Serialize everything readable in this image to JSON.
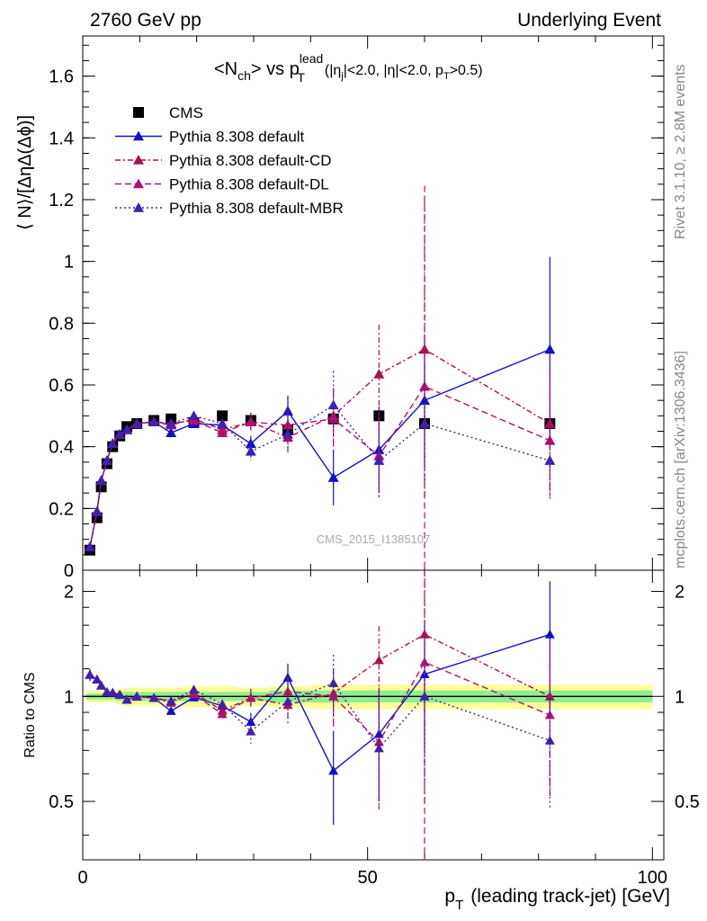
{
  "header": {
    "left": "2760 GeV pp",
    "right": "Underlying Event"
  },
  "side_notes": {
    "top": "Rivet 3.1.10, ≥ 2.8M events",
    "bottom": "mcplots.cern.ch [arXiv:1306.3436]"
  },
  "watermark": "CMS_2015_I1385107",
  "colors": {
    "cms": "#000000",
    "default": "#1010cc",
    "cd": "#aa1050",
    "dl": "#b0106e",
    "mbr": "#4020b0",
    "band_outer": "#ffff99",
    "band_inner": "#90ee90"
  },
  "chart_data": {
    "type": "scatter",
    "title": {
      "pre": "<N",
      "sub1": "ch",
      "mid": "> vs p",
      "sup2": "lead",
      "sub2": "T",
      "cuts": "(|η",
      "cuts_sub": "j",
      "cuts2": "|<2.0, |η|<2.0, p",
      "cuts_sub2": "T",
      "cuts3": ">0.5)"
    },
    "xlabel": "p",
    "xlabel_sub": "T",
    "xlabel_rest": "(leading track-jet) [GeV]",
    "ylabel": "⟨ N⟩/[ΔηΔ(Δϕ)]",
    "ratio_ylabel": "Ratio to CMS",
    "xlim": [
      0,
      102
    ],
    "ylim": [
      0,
      1.73
    ],
    "ratio_ylim": [
      0.34,
      2.3
    ],
    "ratio_log": true,
    "x_ticks": [
      "0",
      "50",
      "100"
    ],
    "y_ticks": [
      "0",
      "0.2",
      "0.4",
      "0.6",
      "0.8",
      "1",
      "1.2",
      "1.4",
      "1.6"
    ],
    "ratio_ticks": [
      "0.5",
      "1",
      "2"
    ],
    "x": [
      1.25,
      2.5,
      3.25,
      4.25,
      5.25,
      6.5,
      7.75,
      9.5,
      12.5,
      15.5,
      19.5,
      24.5,
      29.5,
      36,
      44,
      52,
      60,
      82
    ],
    "band_outer_pct": [
      4,
      4,
      4,
      4,
      4,
      5,
      6,
      6,
      6,
      6,
      7,
      7,
      6,
      7,
      8,
      8,
      8,
      8
    ],
    "band_inner_pct": [
      2,
      2,
      2,
      2,
      2,
      3,
      3,
      3,
      3,
      3,
      3,
      3,
      3,
      4,
      4,
      4,
      4,
      4
    ],
    "series": [
      {
        "name": "CMS",
        "key": "cms",
        "style": "data",
        "values": [
          0.065,
          0.17,
          0.27,
          0.345,
          0.4,
          0.435,
          0.465,
          0.475,
          0.485,
          0.49,
          0.478,
          0.5,
          0.485,
          0.455,
          0.49,
          0.5,
          0.475,
          0.475
        ],
        "errors": [
          0.005,
          0.008,
          0.01,
          0.012,
          0.012,
          0.012,
          0.012,
          0.012,
          0.012,
          0.012,
          0.012,
          0.012,
          0.012,
          0.012,
          0.015,
          0.015,
          0.015,
          0.015
        ]
      },
      {
        "name": "Pythia 8.308 default",
        "key": "default",
        "dash": "",
        "values": [
          0.075,
          0.19,
          0.29,
          0.355,
          0.41,
          0.44,
          0.455,
          0.475,
          0.48,
          0.445,
          0.475,
          0.47,
          0.41,
          0.515,
          0.3,
          0.39,
          0.55,
          0.715
        ],
        "errors": [
          0.003,
          0.004,
          0.005,
          0.005,
          0.005,
          0.005,
          0.005,
          0.005,
          0.008,
          0.01,
          0.012,
          0.015,
          0.025,
          0.05,
          0.09,
          0.14,
          0.21,
          0.3
        ]
      },
      {
        "name": "Pythia 8.308 default-CD",
        "key": "cd",
        "dash": "6,3,2,3",
        "values": [
          0.075,
          0.19,
          0.29,
          0.355,
          0.41,
          0.44,
          0.455,
          0.475,
          0.48,
          0.47,
          0.49,
          0.455,
          0.48,
          0.43,
          0.5,
          0.635,
          0.715,
          0.475
        ],
        "errors": [
          0.003,
          0.004,
          0.005,
          0.005,
          0.005,
          0.005,
          0.005,
          0.005,
          0.008,
          0.01,
          0.012,
          0.015,
          0.03,
          0.05,
          0.09,
          0.16,
          0.48,
          0.22
        ]
      },
      {
        "name": "Pythia 8.308 default-DL",
        "key": "dl",
        "dash": "7,4",
        "values": [
          0.075,
          0.19,
          0.29,
          0.355,
          0.41,
          0.44,
          0.455,
          0.475,
          0.48,
          0.475,
          0.485,
          0.445,
          0.48,
          0.47,
          0.49,
          0.37,
          0.595,
          0.42
        ],
        "errors": [
          0.003,
          0.004,
          0.005,
          0.005,
          0.005,
          0.005,
          0.005,
          0.005,
          0.008,
          0.01,
          0.012,
          0.015,
          0.03,
          0.05,
          0.09,
          0.13,
          0.65,
          0.18
        ]
      },
      {
        "name": "Pythia 8.308 default-MBR",
        "key": "mbr",
        "dash": "2,3",
        "values": [
          0.075,
          0.19,
          0.29,
          0.355,
          0.41,
          0.44,
          0.455,
          0.475,
          0.48,
          0.475,
          0.5,
          0.475,
          0.385,
          0.44,
          0.535,
          0.355,
          0.475,
          0.355
        ],
        "errors": [
          0.003,
          0.004,
          0.005,
          0.005,
          0.005,
          0.005,
          0.005,
          0.005,
          0.008,
          0.01,
          0.012,
          0.015,
          0.03,
          0.05,
          0.11,
          0.12,
          0.2,
          0.13
        ]
      }
    ]
  }
}
